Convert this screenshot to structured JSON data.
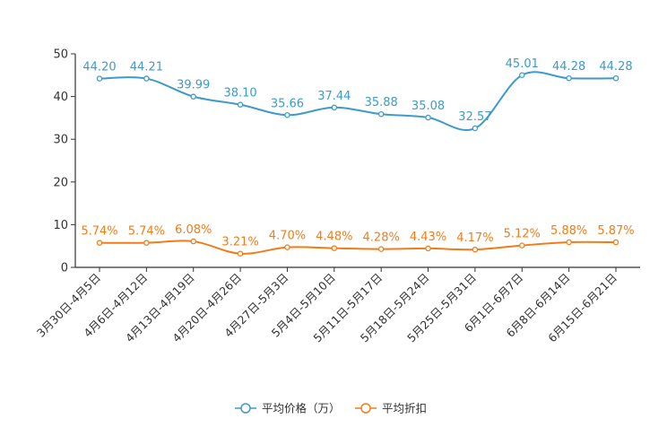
{
  "chart_data": {
    "type": "line",
    "title": "",
    "xlabel": "",
    "ylabel": "",
    "ylim": [
      0,
      50
    ],
    "yticks": [
      "0",
      "10",
      "20",
      "30",
      "40",
      "50"
    ],
    "categories": [
      "3月30日-4月5日",
      "4月6日-4月12日",
      "4月13日-4月19日",
      "4月20日-4月26日",
      "4月27日-5月3日",
      "5月4日-5月10日",
      "5月11日-5月17日",
      "5月18日-5月24日",
      "5月25日-5月31日",
      "6月1日-6月7日",
      "6月8日-6月14日",
      "6月15日-6月21日"
    ],
    "series": [
      {
        "name": "平均价格（万）",
        "color": "#3c9bc9",
        "values": [
          44.2,
          44.21,
          39.99,
          38.1,
          35.66,
          37.44,
          35.88,
          35.08,
          32.57,
          45.01,
          44.28,
          44.28
        ],
        "labels": [
          "44.20",
          "44.21",
          "39.99",
          "38.10",
          "35.66",
          "37.44",
          "35.88",
          "35.08",
          "32.57",
          "45.01",
          "44.28",
          "44.28"
        ]
      },
      {
        "name": "平均折扣",
        "color": "#f07d1a",
        "values": [
          5.74,
          5.74,
          6.08,
          3.21,
          4.7,
          4.48,
          4.28,
          4.43,
          4.17,
          5.12,
          5.88,
          5.87
        ],
        "labels": [
          "5.74%",
          "5.74%",
          "6.08%",
          "3.21%",
          "4.70%",
          "4.48%",
          "4.28%",
          "4.43%",
          "4.17%",
          "5.12%",
          "5.88%",
          "5.87%"
        ]
      }
    ],
    "legend_position": "bottom-center",
    "grid": false
  }
}
